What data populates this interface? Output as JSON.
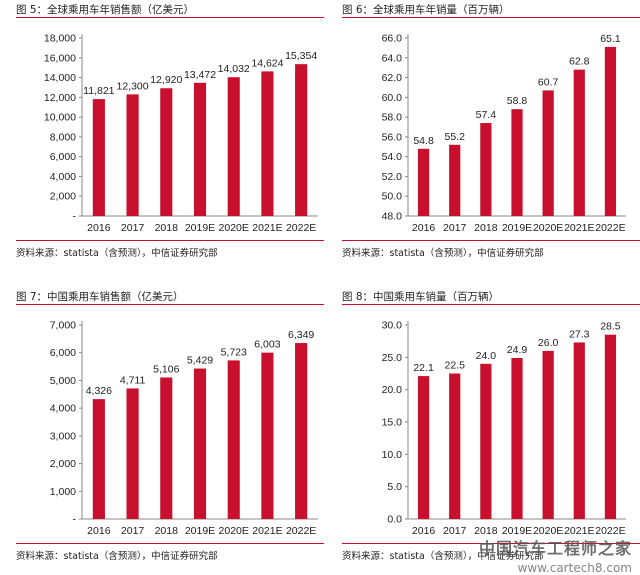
{
  "colors": {
    "bar": "#c8102e",
    "rule": "#c8102e",
    "axis": "#888888"
  },
  "watermark": "中国汽车工程师之家",
  "watermark_sub": "www.cartech8.com",
  "chart_data": [
    {
      "type": "bar",
      "title": "图 5：全球乘用车年销售额（亿美元）",
      "source": "资料来源：statista（含预测），中信证券研究部",
      "categories": [
        "2016",
        "2017",
        "2018",
        "2019E",
        "2020E",
        "2021E",
        "2022E"
      ],
      "values": [
        11821,
        12300,
        12920,
        13472,
        14032,
        14624,
        15354
      ],
      "value_labels": [
        "11,821",
        "12,300",
        "12,920",
        "13,472",
        "14,032",
        "14,624",
        "15,354"
      ],
      "ylim": [
        0,
        18000
      ],
      "yticks": [
        0,
        2000,
        4000,
        6000,
        8000,
        10000,
        12000,
        14000,
        16000,
        18000
      ],
      "ytick_labels": [
        "-",
        "2,000",
        "4,000",
        "6,000",
        "8,000",
        "10,000",
        "12,000",
        "14,000",
        "16,000",
        "18,000"
      ],
      "xlabel": "",
      "ylabel": "",
      "grid": false
    },
    {
      "type": "bar",
      "title": "图 6：全球乘用车年销量（百万辆）",
      "source": "资料来源：statista（含预测），中信证券研究部",
      "categories": [
        "2016",
        "2017",
        "2018",
        "2019E",
        "2020E",
        "2021E",
        "2022E"
      ],
      "values": [
        54.8,
        55.2,
        57.4,
        58.8,
        60.7,
        62.8,
        65.1
      ],
      "value_labels": [
        "54.8",
        "55.2",
        "57.4",
        "58.8",
        "60.7",
        "62.8",
        "65.1"
      ],
      "ylim": [
        48,
        66
      ],
      "yticks": [
        48,
        50,
        52,
        54,
        56,
        58,
        60,
        62,
        64,
        66
      ],
      "ytick_labels": [
        "48.0",
        "50.0",
        "52.0",
        "54.0",
        "56.0",
        "58.0",
        "60.0",
        "62.0",
        "64.0",
        "66.0"
      ],
      "xlabel": "",
      "ylabel": "",
      "grid": false
    },
    {
      "type": "bar",
      "title": "图 7：中国乘用车销售额（亿美元）",
      "source": "资料来源：statista（含预测），中信证券研究部",
      "categories": [
        "2016",
        "2017",
        "2018",
        "2019E",
        "2020E",
        "2021E",
        "2022E"
      ],
      "values": [
        4326,
        4711,
        5106,
        5429,
        5723,
        6003,
        6349
      ],
      "value_labels": [
        "4,326",
        "4,711",
        "5,106",
        "5,429",
        "5,723",
        "6,003",
        "6,349"
      ],
      "ylim": [
        0,
        7000
      ],
      "yticks": [
        0,
        1000,
        2000,
        3000,
        4000,
        5000,
        6000,
        7000
      ],
      "ytick_labels": [
        "-",
        "1,000",
        "2,000",
        "3,000",
        "4,000",
        "5,000",
        "6,000",
        "7,000"
      ],
      "xlabel": "",
      "ylabel": "",
      "grid": false
    },
    {
      "type": "bar",
      "title": "图 8：中国乘用车销量（百万辆）",
      "source": "资料来源：statista（含预测），中信证券研究部",
      "categories": [
        "2016",
        "2017",
        "2018",
        "2019E",
        "2020E",
        "2021E",
        "2022E"
      ],
      "values": [
        22.1,
        22.5,
        24.0,
        24.9,
        26.0,
        27.3,
        28.5
      ],
      "value_labels": [
        "22.1",
        "22.5",
        "24.0",
        "24.9",
        "26.0",
        "27.3",
        "28.5"
      ],
      "ylim": [
        0,
        30
      ],
      "yticks": [
        0,
        5,
        10,
        15,
        20,
        25,
        30
      ],
      "ytick_labels": [
        "0.0",
        "5.0",
        "10.0",
        "15.0",
        "20.0",
        "25.0",
        "30.0"
      ],
      "xlabel": "",
      "ylabel": "",
      "grid": false
    }
  ]
}
